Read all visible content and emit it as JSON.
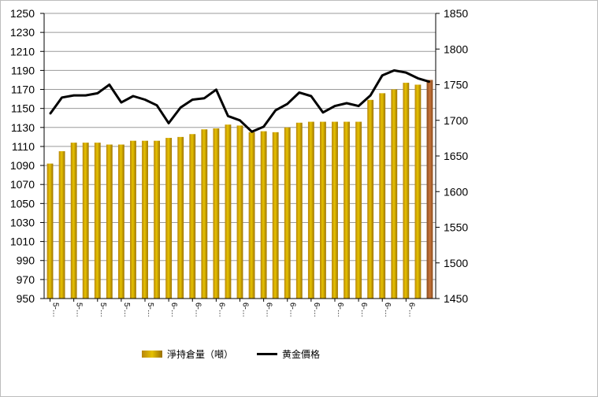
{
  "chart_data": {
    "type": "bar+line",
    "title": "",
    "x_tick_labels": [
      "5-…",
      "5-…",
      "5-…",
      "5-…",
      "5-…",
      "6-…",
      "6-…",
      "6-…",
      "6-…",
      "6-…",
      "6-…",
      "6-…",
      "6-…",
      "6-…",
      "6-…",
      "6-…"
    ],
    "series": [
      {
        "name": "淨持倉量（噸）",
        "type": "bar",
        "axis": "left",
        "values": [
          1092,
          1105,
          1114,
          1114,
          1114,
          1112,
          1112,
          1116,
          1116,
          1116,
          1119,
          1120,
          1123,
          1128,
          1129,
          1133,
          1132,
          1125,
          1126,
          1125,
          1130,
          1135,
          1136,
          1136,
          1136,
          1136,
          1136,
          1159,
          1166,
          1170,
          1177,
          1175,
          1180
        ]
      },
      {
        "name": "黄金價格",
        "type": "line",
        "axis": "right",
        "values": [
          1709,
          1732,
          1735,
          1735,
          1738,
          1750,
          1725,
          1734,
          1729,
          1721,
          1696,
          1718,
          1729,
          1731,
          1743,
          1706,
          1700,
          1684,
          1691,
          1714,
          1723,
          1739,
          1734,
          1711,
          1720,
          1724,
          1720,
          1735,
          1763,
          1770,
          1767,
          1759,
          1754
        ]
      }
    ],
    "y_left": {
      "ylim": [
        950,
        1250
      ],
      "ticks": [
        950,
        970,
        990,
        1010,
        1030,
        1050,
        1070,
        1090,
        1110,
        1130,
        1150,
        1170,
        1190,
        1210,
        1230,
        1250
      ]
    },
    "y_right": {
      "ylim": [
        1450,
        1850
      ],
      "ticks": [
        1450,
        1500,
        1550,
        1600,
        1650,
        1700,
        1750,
        1800,
        1850
      ]
    },
    "grid": true,
    "legend_position": "bottom",
    "colors": {
      "bar": "#d4a90c",
      "bar_last": "#b5652a",
      "line": "#000000",
      "grid": "#9a9a9a"
    }
  }
}
